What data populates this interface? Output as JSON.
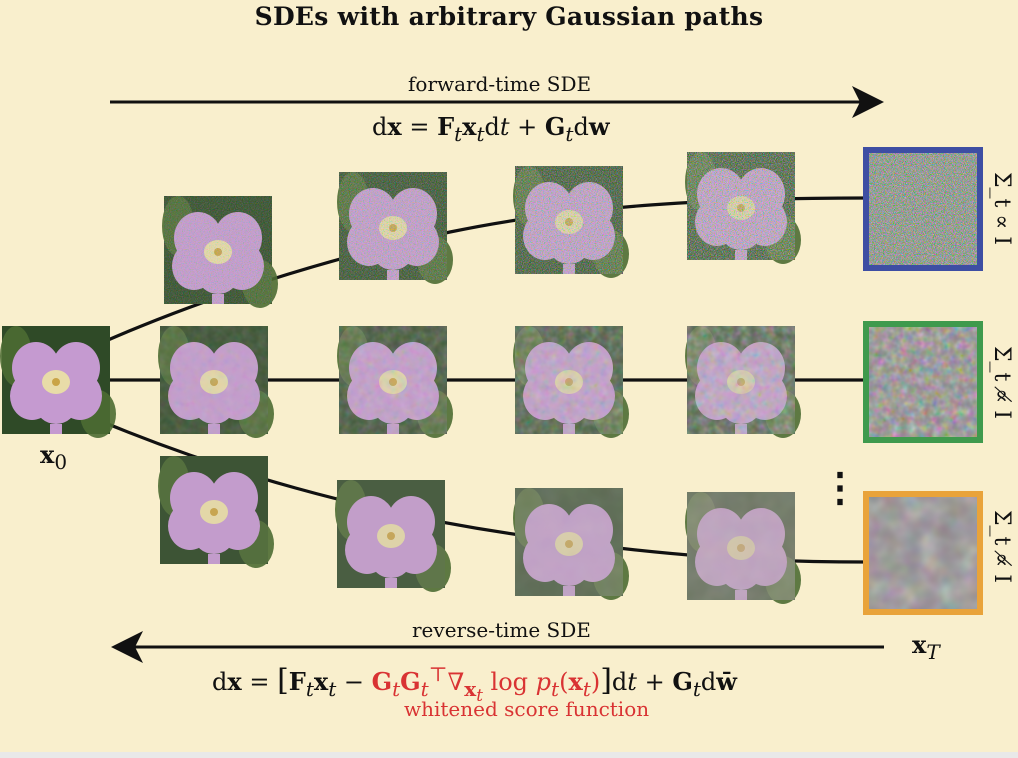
{
  "title": "SDEs with arbitrary Gaussian paths",
  "forward": {
    "label": "forward-time SDE",
    "eq_lhs": "dx = ",
    "eq_rhs": "F",
    "full": "dx = F_t x_t dt + G_t dw"
  },
  "reverse": {
    "label": "reverse-time SDE",
    "full": "dx = [F_t x_t − G_t G_t^⊤ ∇_{x_t} log p_t(x_t)] dt + G_t dw̄",
    "note": "whitened score function"
  },
  "labels": {
    "x0": "x",
    "x0_sub": "0",
    "xT": "x",
    "xT_sub": "T",
    "dots": "⋮"
  },
  "rows": [
    {
      "relation": "Σ_t ∝ I",
      "frame_color": "#3e4ea3"
    },
    {
      "relation": "Σ_t ∝̸ I",
      "frame_color": "#3f9a4d"
    },
    {
      "relation": "Σ_t ∝̸ I",
      "frame_color": "#e9a33a"
    }
  ],
  "colors": {
    "background": "#f9efcd",
    "accent_red": "#d93333"
  }
}
